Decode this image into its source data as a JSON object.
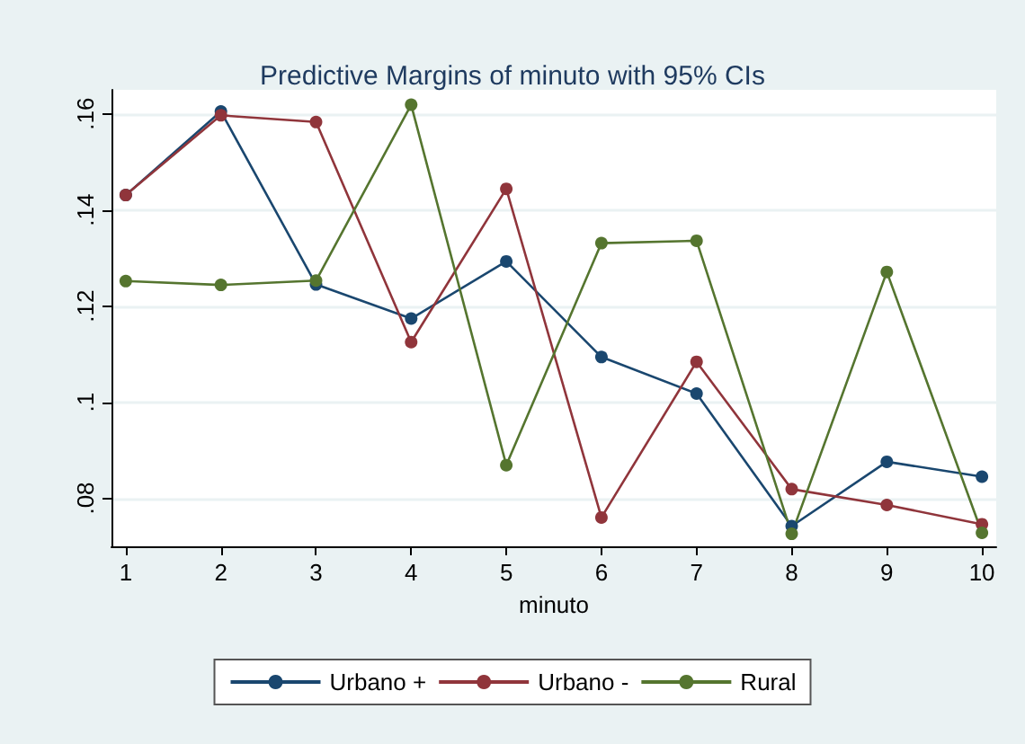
{
  "chart_data": {
    "type": "line",
    "title": "Predictive Margins of minuto with 95% CIs",
    "xlabel": "minuto",
    "x": [
      1,
      2,
      3,
      4,
      5,
      6,
      7,
      8,
      9,
      10
    ],
    "series": [
      {
        "name": "Urbano +",
        "color": "#1a476f",
        "values": [
          0.1431,
          0.1605,
          0.1245,
          0.1174,
          0.1293,
          0.1094,
          0.1018,
          0.0742,
          0.0876,
          0.0845
        ]
      },
      {
        "name": "Urbano -",
        "color": "#90353b",
        "values": [
          0.1431,
          0.1597,
          0.1583,
          0.1125,
          0.1444,
          0.076,
          0.1084,
          0.0819,
          0.0786,
          0.0746
        ]
      },
      {
        "name": "Rural",
        "color": "#55752f",
        "values": [
          0.1252,
          0.1244,
          0.1253,
          0.1619,
          0.0869,
          0.1331,
          0.1336,
          0.0726,
          0.1271,
          0.0728
        ]
      }
    ],
    "xlim": [
      0.85,
      10.15
    ],
    "xticks": [
      1,
      2,
      3,
      4,
      5,
      6,
      7,
      8,
      9,
      10
    ],
    "ylim": [
      0.07,
      0.165
    ],
    "yticks": [
      {
        "value": 0.08,
        "label": ".08"
      },
      {
        "value": 0.1,
        "label": ".1"
      },
      {
        "value": 0.12,
        "label": ".12"
      },
      {
        "value": 0.14,
        "label": ".14"
      },
      {
        "value": 0.16,
        "label": ".16"
      }
    ],
    "grid": "y",
    "legend": "bottom",
    "marker": "circle",
    "line_style": "solid"
  }
}
